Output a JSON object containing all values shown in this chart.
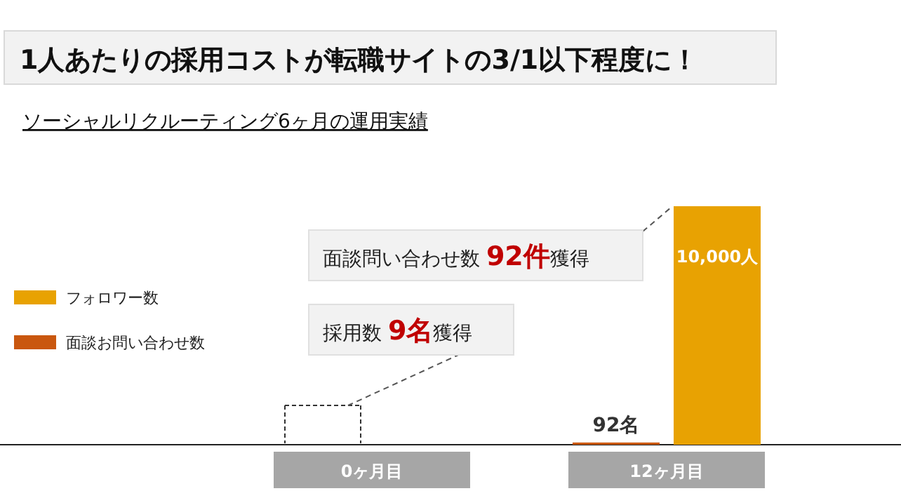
{
  "chart_data": {
    "type": "bar",
    "title": "1人あたりの採用コストが転職サイトの3/1以下程度に！",
    "subtitle": "ソーシャルリクルーティング6ヶ月の運用実績",
    "categories": [
      "0ヶ月目",
      "12ヶ月目"
    ],
    "series": [
      {
        "name": "フォロワー数",
        "color": "#e8a202",
        "values": [
          null,
          10000
        ],
        "value_labels": [
          null,
          "10,000人"
        ]
      },
      {
        "name": "面談お問い合わせ数",
        "color": "#c9570f",
        "values": [
          null,
          92
        ],
        "value_labels": [
          null,
          "92名"
        ]
      }
    ],
    "legend": "left",
    "annotations": [
      "面談問い合わせ数 **92件**獲得",
      "採用数 **9名**獲得"
    ]
  }
}
